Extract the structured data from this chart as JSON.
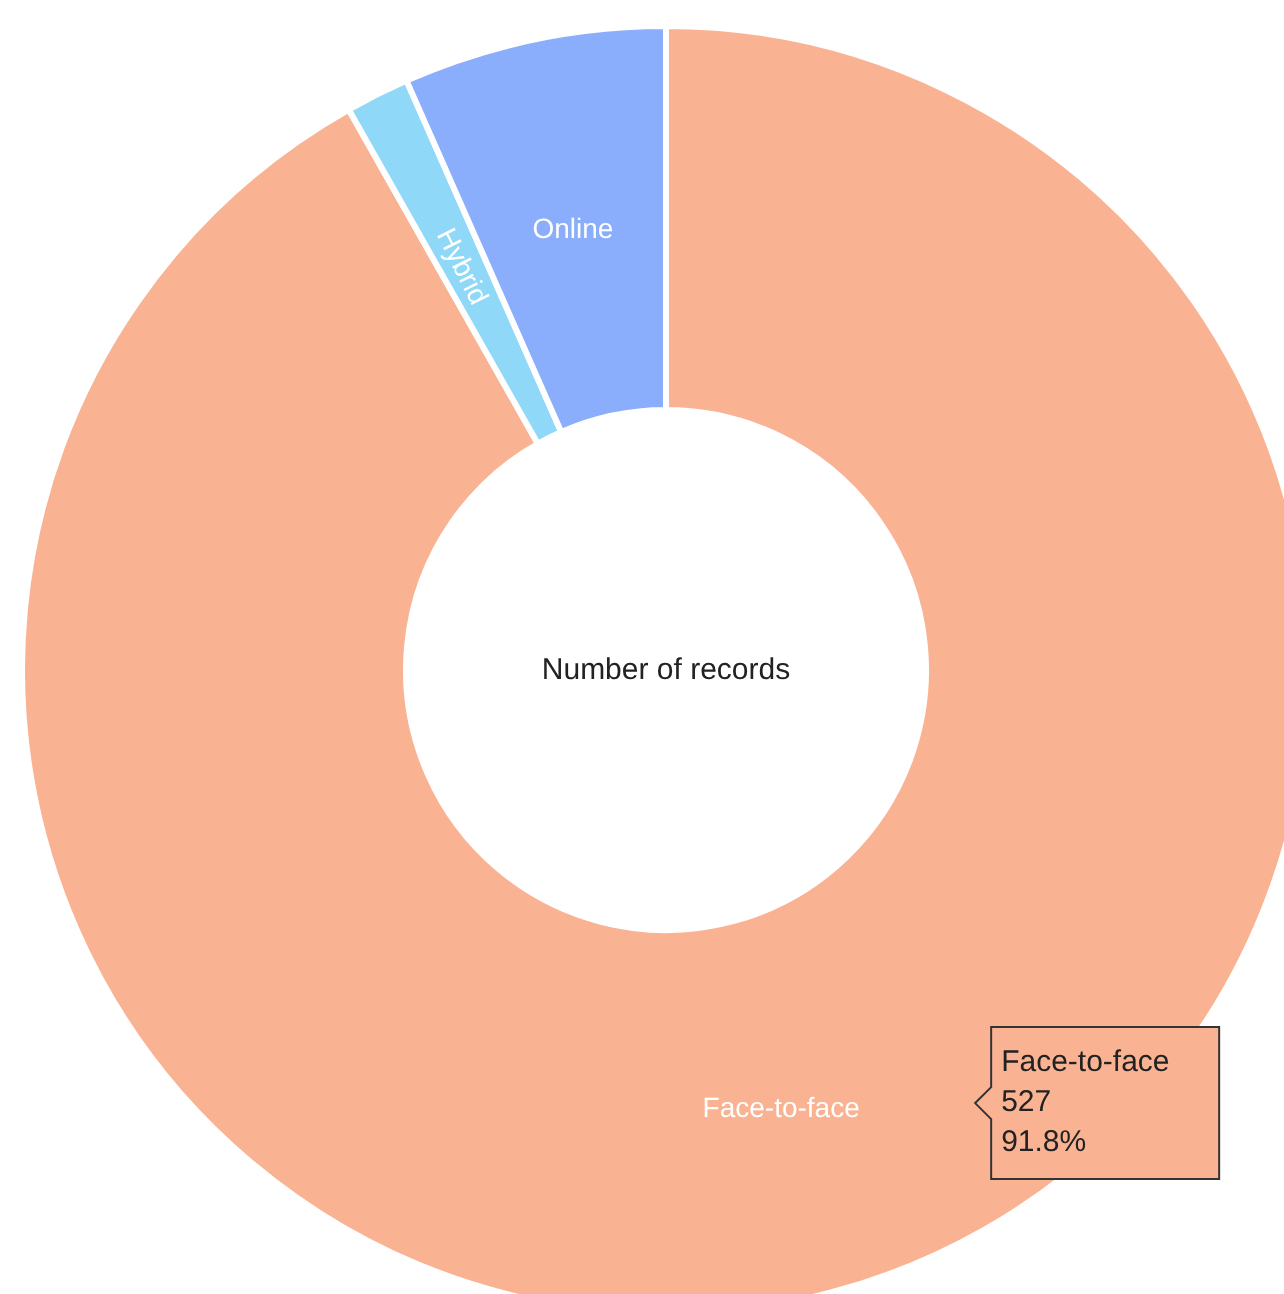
{
  "chart_data": {
    "type": "donut",
    "title": "Number of records",
    "categories": [
      "Face-to-face",
      "Hybrid",
      "Online"
    ],
    "values": [
      91.8,
      1.6,
      6.6
    ],
    "colors": [
      "#f9b393",
      "#8fd8f8",
      "#8aaefc"
    ],
    "annotations": [
      "Face-to-face",
      "527",
      "91.8%"
    ]
  }
}
